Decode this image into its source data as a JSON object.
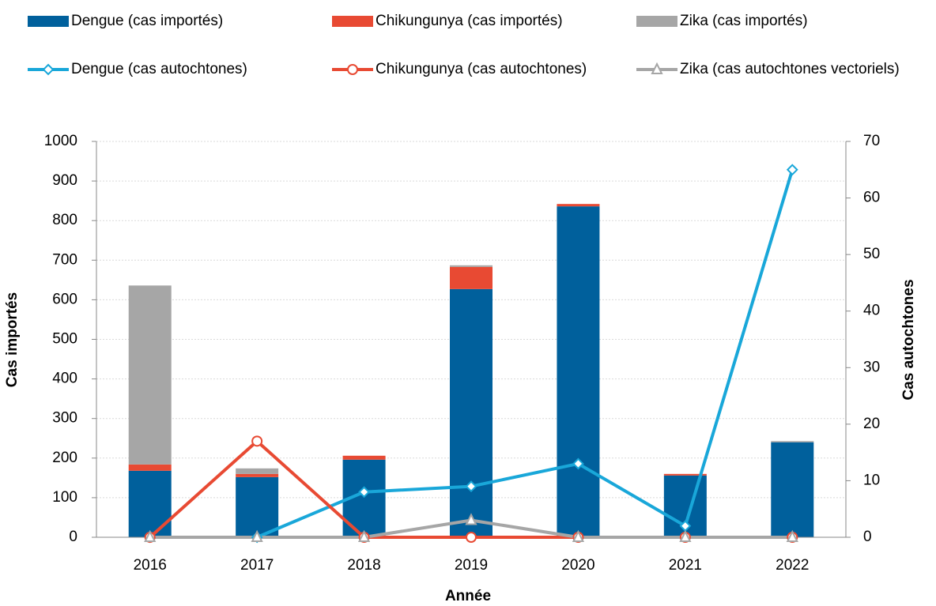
{
  "chart_data": {
    "type": "bar",
    "x_label": "Année",
    "y_label": "Cas importés",
    "y2_label": "Cas autochtones",
    "categories": [
      "2016",
      "2017",
      "2018",
      "2019",
      "2020",
      "2021",
      "2022"
    ],
    "series": [
      {
        "name": "Dengue (cas importés)",
        "type": "bar",
        "color": "#00609c",
        "values": [
          168,
          152,
          196,
          627,
          836,
          156,
          240
        ]
      },
      {
        "name": "Chikungunya (cas importés)",
        "type": "bar",
        "color": "#e84a33",
        "values": [
          16,
          8,
          10,
          56,
          6,
          4,
          0
        ]
      },
      {
        "name": "Zika (cas importés)",
        "type": "bar",
        "color": "#a6a6a6",
        "values": [
          452,
          14,
          0,
          4,
          0,
          0,
          3
        ]
      },
      {
        "name": "Dengue (cas autochtones)",
        "type": "line",
        "axis": "y2",
        "marker": "diamond",
        "color": "#19a7d9",
        "values": [
          0,
          0,
          8,
          9,
          13,
          2,
          65
        ]
      },
      {
        "name": "Chikungunya (cas autochtones)",
        "type": "line",
        "axis": "y2",
        "marker": "circle",
        "color": "#e84a33",
        "values": [
          0,
          17,
          0,
          0,
          0,
          0,
          0
        ]
      },
      {
        "name": "Zika (cas autochtones vectoriels)",
        "type": "line",
        "axis": "y2",
        "marker": "triangle",
        "color": "#a6a6a6",
        "values": [
          0,
          0,
          0,
          3,
          0,
          0,
          0
        ]
      }
    ],
    "ylim": [
      0,
      1000
    ],
    "yticks": [
      0,
      100,
      200,
      300,
      400,
      500,
      600,
      700,
      800,
      900,
      1000
    ],
    "y2lim": [
      0,
      70
    ],
    "y2ticks": [
      0,
      10,
      20,
      30,
      40,
      50,
      60,
      70
    ],
    "grid": true,
    "legend": "top"
  }
}
